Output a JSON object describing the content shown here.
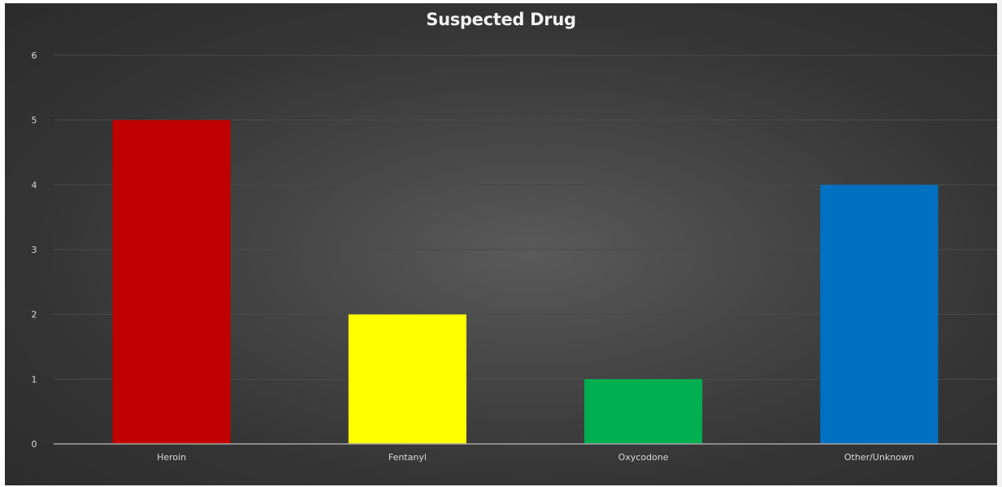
{
  "chart_data": {
    "type": "bar",
    "title": "Suspected Drug",
    "categories": [
      "Heroin",
      "Fentanyl",
      "Oxycodone",
      "Other/Unknown"
    ],
    "values": [
      5,
      2,
      1,
      4
    ],
    "colors": [
      "#c00000",
      "#ffff00",
      "#00b050",
      "#0070c0"
    ],
    "ylim": [
      0,
      6
    ],
    "yticks": [
      "0",
      "1",
      "2",
      "3",
      "4",
      "5",
      "6"
    ],
    "grid": true,
    "xlabel": "",
    "ylabel": ""
  },
  "theme": {
    "gridline_color": "#4a4a4a",
    "axis_color": "#a6a6a6",
    "label_color": "#d9d9d9"
  }
}
